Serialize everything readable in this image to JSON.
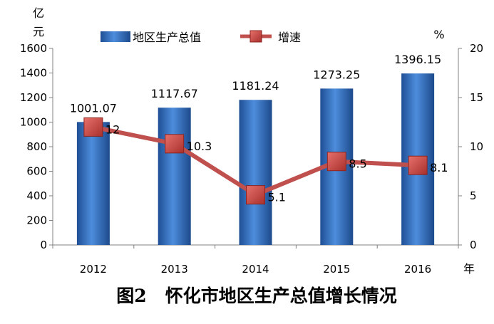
{
  "chart_data": {
    "type": "bar",
    "caption": "图2   怀化市地区生产总值增长情况",
    "categories": [
      "2012",
      "2013",
      "2014",
      "2015",
      "2016"
    ],
    "series": [
      {
        "name": "地区生产总值",
        "type": "bar",
        "axis": "left",
        "values": [
          1001.07,
          1117.67,
          1181.24,
          1273.25,
          1396.15
        ],
        "labels": [
          "1001.07",
          "1117.67",
          "1181.24",
          "1273.25",
          "1396.15"
        ],
        "color": "#3d78c9"
      },
      {
        "name": "增速",
        "type": "line",
        "axis": "right",
        "values": [
          12,
          10.3,
          5.1,
          8.5,
          8.1
        ],
        "labels": [
          "12",
          "10.3",
          "5.1",
          "8.5",
          "8.1"
        ],
        "color": "#c0504d"
      }
    ],
    "y_left": {
      "unit_line1": "亿",
      "unit_line2": "元",
      "ylim": [
        0,
        1600
      ],
      "ticks": [
        "0",
        "200",
        "400",
        "600",
        "800",
        "1000",
        "1200",
        "1400",
        "1600"
      ]
    },
    "y_right": {
      "unit": "%",
      "ylim": [
        0,
        20
      ],
      "ticks": [
        "0",
        "5",
        "10",
        "15",
        "20"
      ]
    },
    "x_unit": "年",
    "legend": "top",
    "grid": false
  }
}
